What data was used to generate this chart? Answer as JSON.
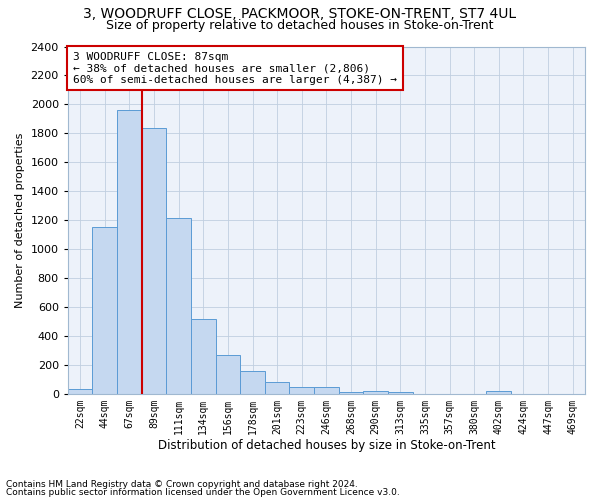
{
  "title1": "3, WOODRUFF CLOSE, PACKMOOR, STOKE-ON-TRENT, ST7 4UL",
  "title2": "Size of property relative to detached houses in Stoke-on-Trent",
  "xlabel": "Distribution of detached houses by size in Stoke-on-Trent",
  "ylabel": "Number of detached properties",
  "categories": [
    "22sqm",
    "44sqm",
    "67sqm",
    "89sqm",
    "111sqm",
    "134sqm",
    "156sqm",
    "178sqm",
    "201sqm",
    "223sqm",
    "246sqm",
    "268sqm",
    "290sqm",
    "313sqm",
    "335sqm",
    "357sqm",
    "380sqm",
    "402sqm",
    "424sqm",
    "447sqm",
    "469sqm"
  ],
  "values": [
    30,
    1150,
    1960,
    1840,
    1215,
    515,
    265,
    155,
    80,
    50,
    45,
    15,
    20,
    12,
    0,
    0,
    0,
    20,
    0,
    0,
    0
  ],
  "bar_color": "#c5d8f0",
  "bar_edge_color": "#5b9bd5",
  "vline_color": "#cc0000",
  "annotation_text": "3 WOODRUFF CLOSE: 87sqm\n← 38% of detached houses are smaller (2,806)\n60% of semi-detached houses are larger (4,387) →",
  "annotation_box_color": "#ffffff",
  "annotation_box_edge": "#cc0000",
  "footnote1": "Contains HM Land Registry data © Crown copyright and database right 2024.",
  "footnote2": "Contains public sector information licensed under the Open Government Licence v3.0.",
  "ylim": [
    0,
    2400
  ],
  "yticks": [
    0,
    200,
    400,
    600,
    800,
    1000,
    1200,
    1400,
    1600,
    1800,
    2000,
    2200,
    2400
  ],
  "bg_color": "#edf2fa",
  "title1_fontsize": 10,
  "title2_fontsize": 9
}
